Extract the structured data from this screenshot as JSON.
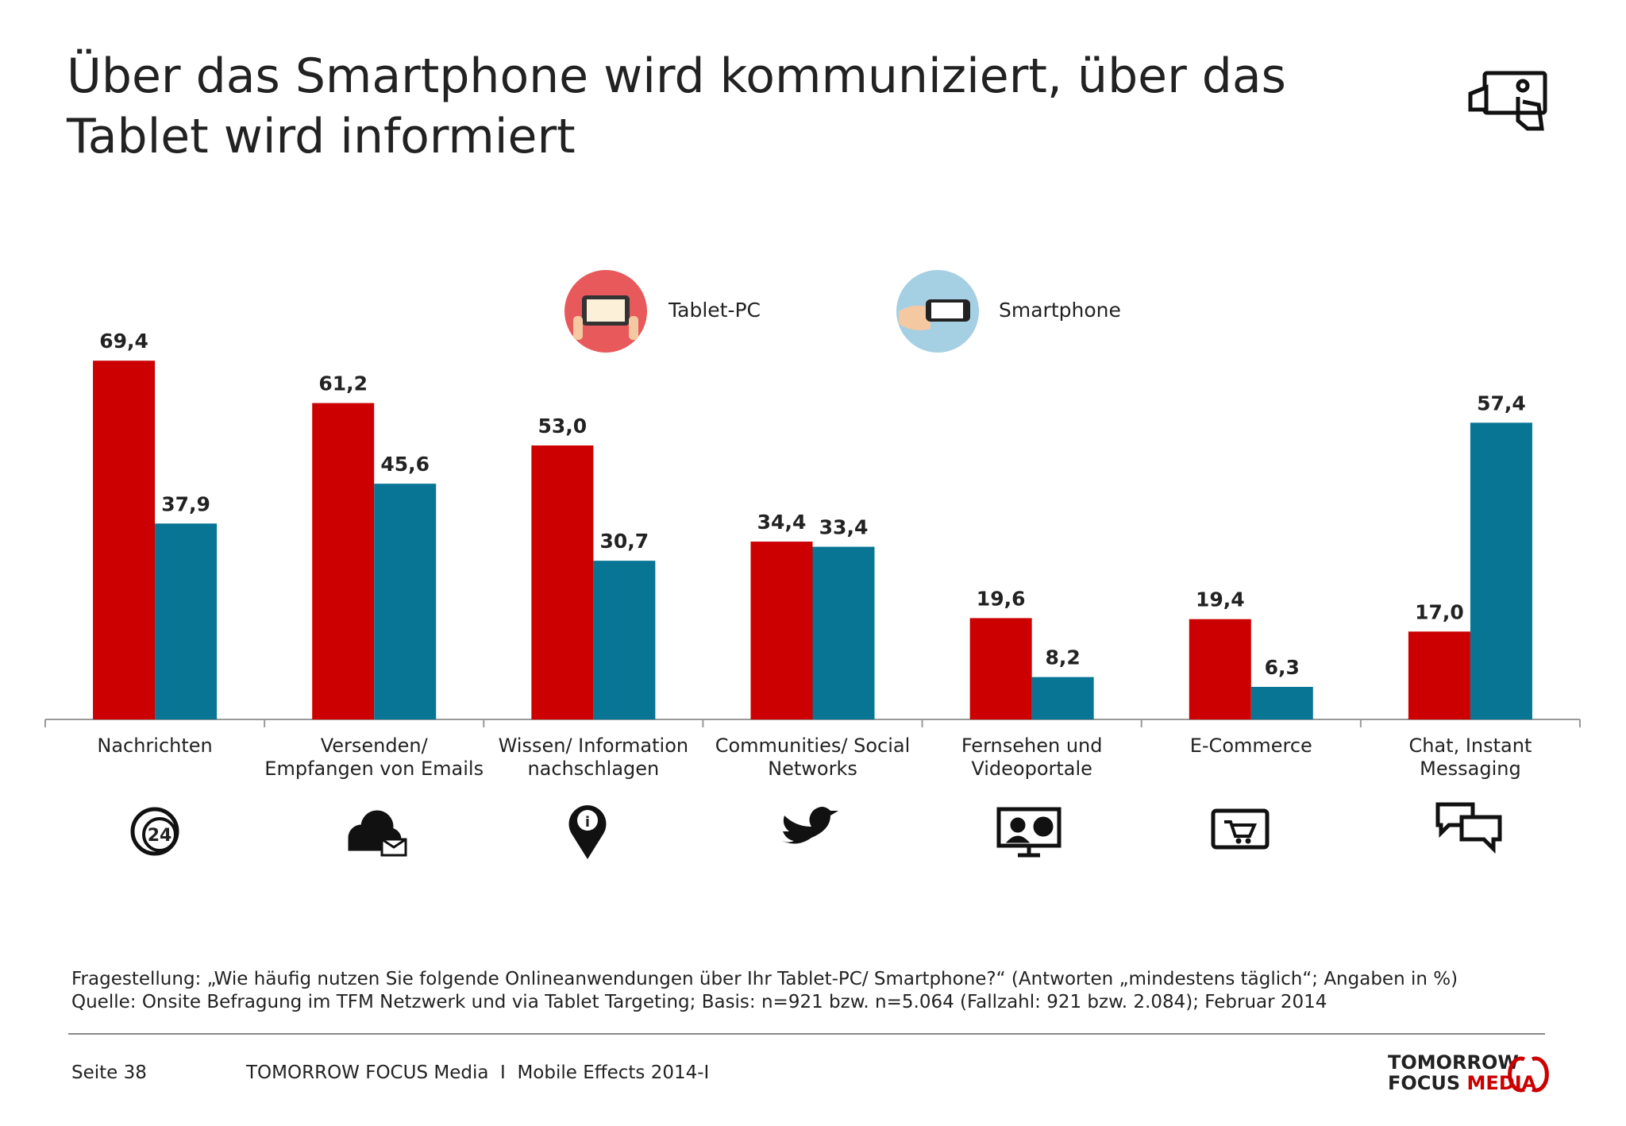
{
  "chart_data": {
    "type": "bar",
    "title": [
      "Über das Smartphone wird kommuniziert, über das",
      "Tablet wird informiert"
    ],
    "categories": [
      [
        "Nachrichten"
      ],
      [
        "Versenden/",
        "Empfangen von Emails"
      ],
      [
        "Wissen/ Information",
        "nachschlagen"
      ],
      [
        "Communities/ Social",
        "Networks"
      ],
      [
        "Fernsehen und",
        "Videoportale"
      ],
      [
        "E-Commerce"
      ],
      [
        "Chat, Instant",
        "Messaging"
      ]
    ],
    "series": [
      {
        "name": "Tablet-PC",
        "color": "#cc0000",
        "values": [
          69.4,
          61.2,
          53.0,
          34.4,
          19.6,
          19.4,
          17.0
        ],
        "value_labels": [
          "69,4",
          "61,2",
          "53,0",
          "34,4",
          "19,6",
          "19,4",
          "17,0"
        ]
      },
      {
        "name": "Smartphone",
        "color": "#087594",
        "values": [
          37.9,
          45.6,
          30.7,
          33.4,
          8.2,
          6.3,
          57.4
        ],
        "value_labels": [
          "37,9",
          "45,6",
          "30,7",
          "33,4",
          "8,2",
          "6,3",
          "57,4"
        ]
      }
    ],
    "ylim": [
      0,
      80
    ],
    "notes": [
      "Fragestellung: „Wie häufig nutzen Sie folgende Onlineanwendungen über Ihr Tablet-PC/ Smartphone?“ (Antworten „mindestens täglich“; Angaben in %)",
      "Quelle: Onsite Befragung im TFM Netzwerk und via Tablet Targeting; Basis: n=921 bzw. n=5.064 (Fallzahl: 921 bzw. 2.084); Februar 2014"
    ]
  },
  "footer": {
    "page": "Seite 38",
    "publication": "TOMORROW FOCUS Media  I  Mobile Effects 2014-I",
    "logo": [
      "TOMORROW",
      "FOCUS",
      "MEDIA"
    ]
  }
}
